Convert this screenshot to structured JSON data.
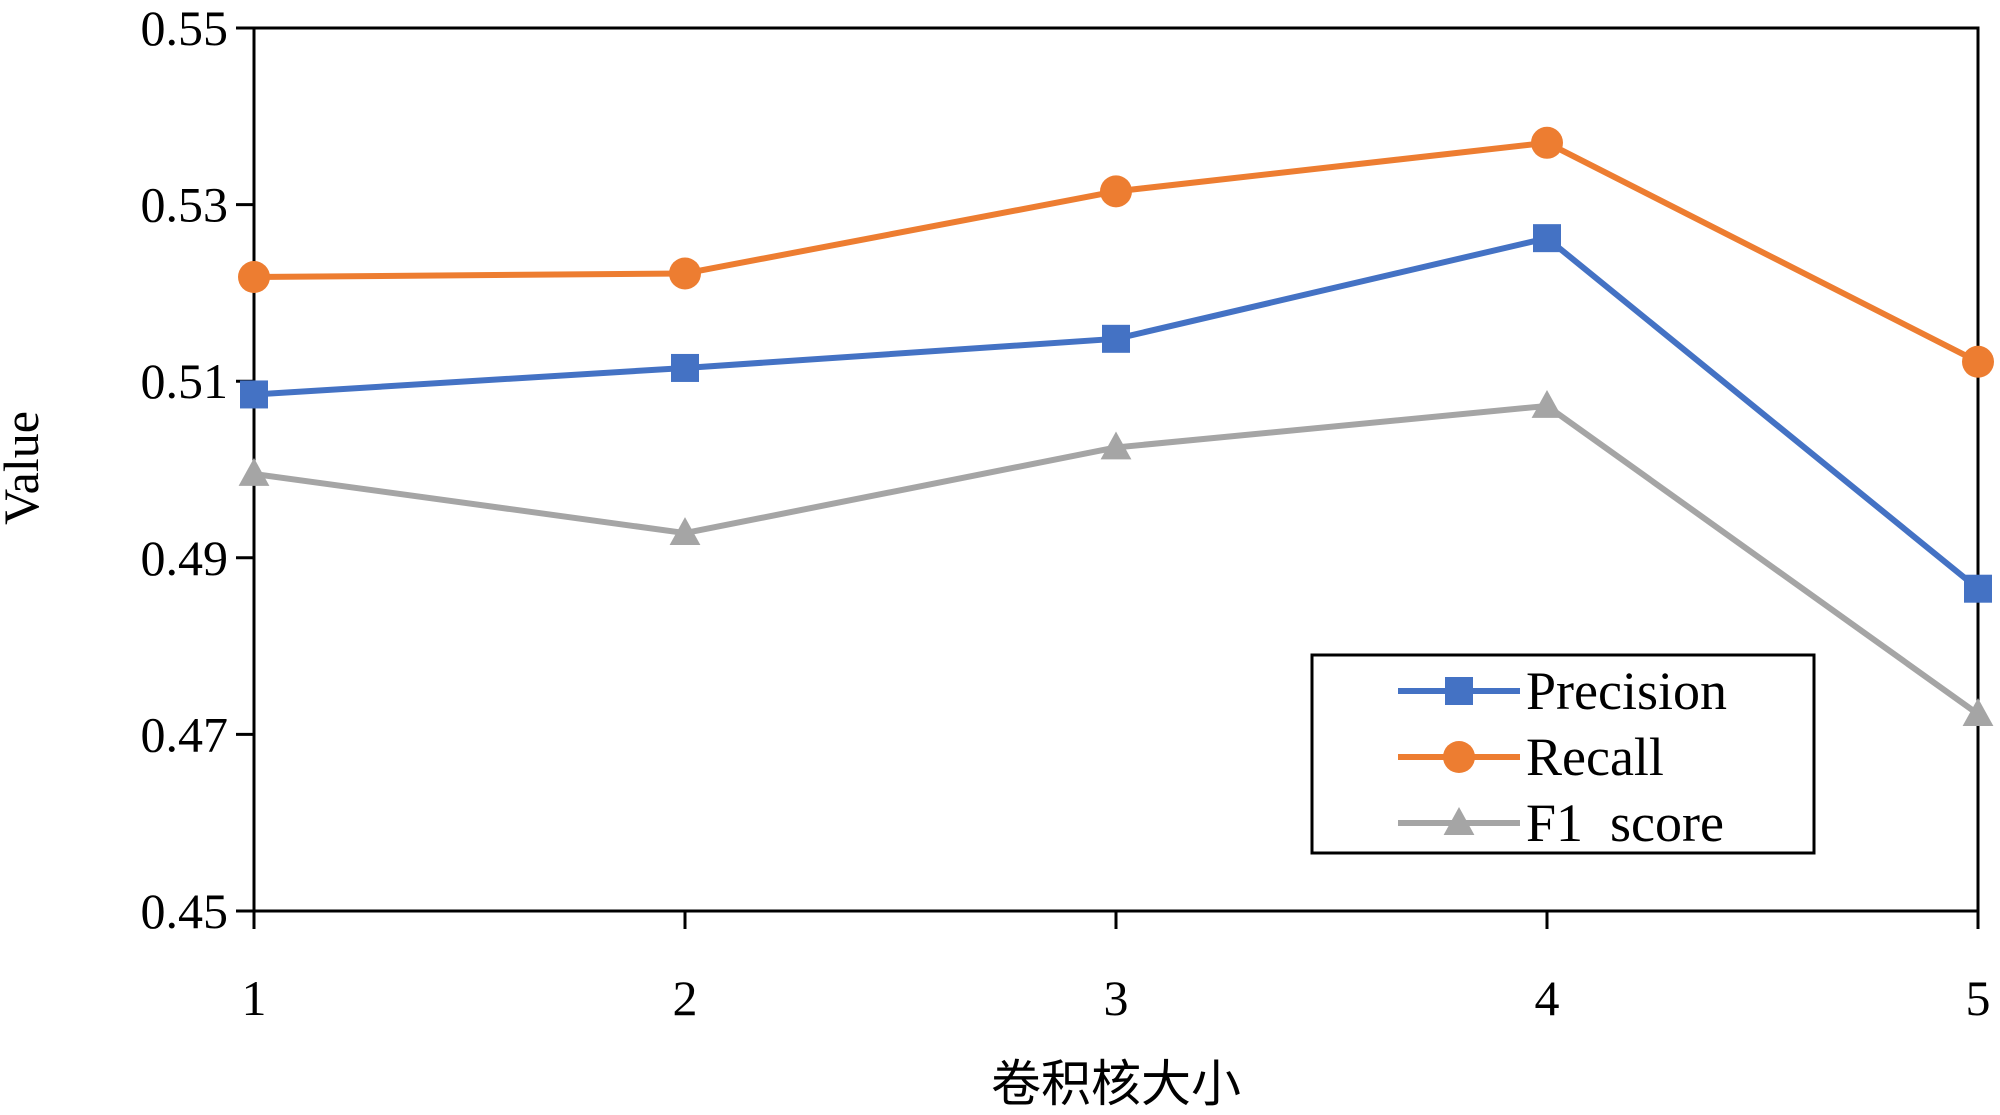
{
  "chart_data": {
    "type": "line",
    "x": [
      1,
      2,
      3,
      4,
      5
    ],
    "xlabel": "卷积核大小",
    "ylabel": "Value",
    "ylim": [
      0.45,
      0.55
    ],
    "yticks": [
      "0.45",
      "0.47",
      "0.49",
      "0.51",
      "0.53",
      "0.55"
    ],
    "xticks": [
      "1",
      "2",
      "3",
      "4",
      "5"
    ],
    "grid": false,
    "legend_position": "bottom-right",
    "series": [
      {
        "name": "Precision",
        "values": [
          0.5085,
          0.5115,
          0.5148,
          0.5262,
          0.4865
        ],
        "color": "#4472C4",
        "marker": "square"
      },
      {
        "name": "Recall",
        "values": [
          0.5218,
          0.5222,
          0.5315,
          0.537,
          0.5122
        ],
        "color": "#ED7D31",
        "marker": "circle"
      },
      {
        "name": "F1  score",
        "values": [
          0.4995,
          0.4928,
          0.5025,
          0.5072,
          0.4723
        ],
        "color": "#A5A5A5",
        "marker": "triangle"
      }
    ]
  }
}
